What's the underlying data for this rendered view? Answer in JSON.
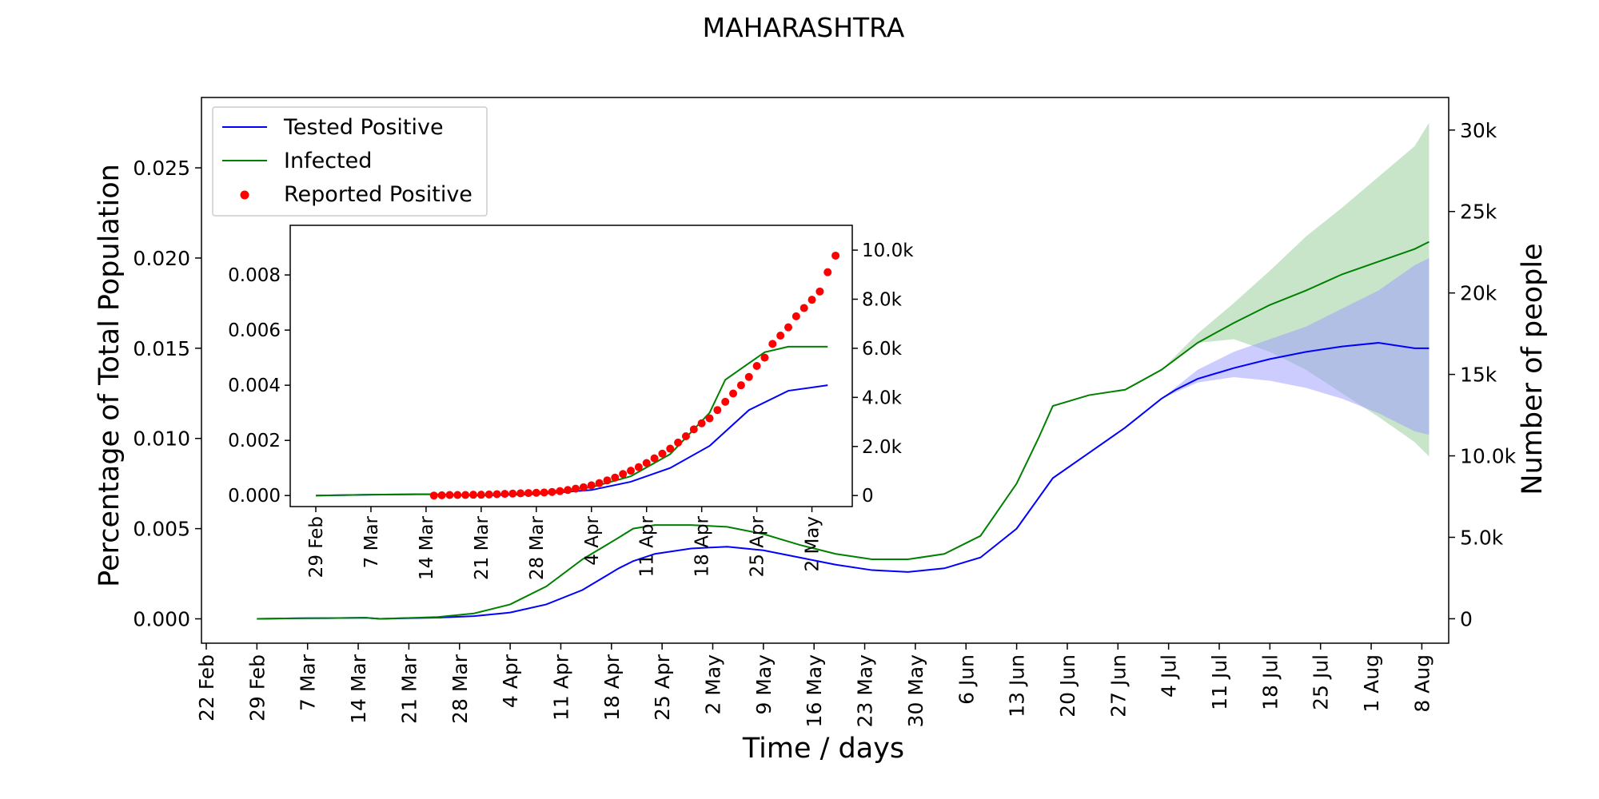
{
  "chart_data": [
    {
      "type": "line",
      "title": "MAHARASHTRA",
      "xlabel": "Time / days",
      "ylabel": "Percentage of Total Population",
      "y2label": "Number of people",
      "x_ticks": [
        "22 Feb",
        "29 Feb",
        "7 Mar",
        "14 Mar",
        "21 Mar",
        "28 Mar",
        "4 Apr",
        "11 Apr",
        "18 Apr",
        "25 Apr",
        "2 May",
        "9 May",
        "16 May",
        "23 May",
        "30 May",
        "6 Jun",
        "13 Jun",
        "20 Jun",
        "27 Jun",
        "4 Jul",
        "11 Jul",
        "18 Jul",
        "25 Jul",
        "1 Aug",
        "8 Aug"
      ],
      "y_ticks": [
        "0.000",
        "0.005",
        "0.010",
        "0.015",
        "0.020",
        "0.025"
      ],
      "y2_ticks": [
        "0",
        "5.0k",
        "10.0k",
        "15k",
        "20k",
        "25k",
        "30k"
      ],
      "ylim": [
        -0.00135,
        0.0289
      ],
      "y2lim": [
        -1500,
        32000
      ],
      "grid": false,
      "legend_position": "top-left",
      "legend": [
        "Tested Positive",
        "Infected",
        "Reported Positive"
      ],
      "colors": {
        "tested": "#0000ff",
        "infected": "#008000",
        "reported": "#ff0000",
        "tested_band": "#9999ff",
        "infected_band": "#8fc88f"
      },
      "series": [
        {
          "name": "Tested Positive",
          "x": [
            0,
            5,
            10,
            15,
            17,
            20,
            25,
            30,
            35,
            40,
            45,
            50,
            52,
            55,
            60,
            65,
            70,
            75,
            80,
            85,
            90,
            95,
            100,
            105,
            110,
            115,
            120,
            125,
            127,
            130,
            135,
            140,
            145,
            150,
            155,
            160,
            162
          ],
          "values": [
            0.0,
            3e-05,
            4e-05,
            6e-05,
            0.0,
            3e-05,
            7e-05,
            0.00015,
            0.00035,
            0.0008,
            0.0016,
            0.0028,
            0.0032,
            0.0036,
            0.0039,
            0.004,
            0.0038,
            0.0034,
            0.003,
            0.0027,
            0.0026,
            0.0028,
            0.0034,
            0.005,
            0.0078,
            0.0092,
            0.0106,
            0.0122,
            0.0127,
            0.0133,
            0.0139,
            0.0144,
            0.0148,
            0.0151,
            0.0153,
            0.015,
            0.015
          ]
        },
        {
          "name": "Infected",
          "x": [
            0,
            5,
            10,
            15,
            17,
            20,
            25,
            30,
            35,
            40,
            45,
            50,
            52,
            55,
            60,
            65,
            70,
            75,
            80,
            85,
            90,
            95,
            100,
            105,
            108,
            110,
            115,
            120,
            125,
            130,
            135,
            140,
            145,
            150,
            155,
            160,
            162
          ],
          "values": [
            0.0,
            3e-05,
            4e-05,
            6e-05,
            0.0,
            4e-05,
            0.0001,
            0.0003,
            0.0008,
            0.0018,
            0.0033,
            0.0045,
            0.005,
            0.0052,
            0.0052,
            0.0051,
            0.0047,
            0.0041,
            0.0036,
            0.0033,
            0.0033,
            0.0036,
            0.0046,
            0.0075,
            0.01,
            0.0118,
            0.0124,
            0.0127,
            0.0138,
            0.0153,
            0.0164,
            0.0174,
            0.0182,
            0.0191,
            0.0198,
            0.0205,
            0.0209
          ]
        }
      ],
      "bands": [
        {
          "name": "Infected range",
          "x": [
            125,
            130,
            135,
            140,
            145,
            150,
            155,
            160,
            162
          ],
          "lower": [
            0.0138,
            0.0153,
            0.0155,
            0.0148,
            0.0138,
            0.0125,
            0.0112,
            0.0098,
            0.009
          ],
          "upper": [
            0.0138,
            0.0158,
            0.0175,
            0.0193,
            0.0212,
            0.0228,
            0.0245,
            0.0262,
            0.0275
          ]
        },
        {
          "name": "Tested Positive range",
          "x": [
            125,
            130,
            135,
            140,
            145,
            150,
            155,
            160,
            162
          ],
          "lower": [
            0.0122,
            0.0131,
            0.0134,
            0.0132,
            0.0128,
            0.0122,
            0.0114,
            0.0104,
            0.0102
          ],
          "upper": [
            0.0122,
            0.0138,
            0.0148,
            0.0155,
            0.0162,
            0.0172,
            0.0182,
            0.0196,
            0.02
          ]
        }
      ]
    },
    {
      "type": "line",
      "title": "",
      "x_ticks": [
        "29 Feb",
        "7 Mar",
        "14 Mar",
        "21 Mar",
        "28 Mar",
        "4 Apr",
        "11 Apr",
        "18 Apr",
        "25 Apr",
        "2 May"
      ],
      "y_ticks": [
        "0.000",
        "0.002",
        "0.004",
        "0.006",
        "0.008"
      ],
      "y2_ticks": [
        "0",
        "2.0k",
        "4.0k",
        "6.0k",
        "8.0k",
        "10.0k"
      ],
      "ylim": [
        -0.0004,
        0.0098
      ],
      "series": [
        {
          "name": "Tested Positive",
          "x": [
            0,
            7,
            14,
            21,
            28,
            35,
            40,
            45,
            50,
            55,
            60,
            65
          ],
          "values": [
            0.0,
            3e-05,
            5e-05,
            0.0,
            5e-05,
            0.0002,
            0.0005,
            0.001,
            0.0018,
            0.0031,
            0.0038,
            0.004
          ]
        },
        {
          "name": "Infected",
          "x": [
            0,
            7,
            14,
            21,
            28,
            35,
            40,
            45,
            50,
            52,
            55,
            57,
            60,
            65
          ],
          "values": [
            0.0,
            3e-05,
            5e-05,
            0.0,
            0.0001,
            0.0003,
            0.0007,
            0.0015,
            0.003,
            0.0042,
            0.0048,
            0.0052,
            0.0054,
            0.0054
          ]
        },
        {
          "name": "Reported Positive",
          "x": [
            15,
            16,
            17,
            18,
            19,
            20,
            21,
            22,
            23,
            24,
            25,
            26,
            27,
            28,
            29,
            30,
            31,
            32,
            33,
            34,
            35,
            36,
            37,
            38,
            39,
            40,
            41,
            42,
            43,
            44,
            45,
            46,
            47,
            48,
            49,
            50,
            51,
            52,
            53,
            54,
            55,
            56,
            57,
            58,
            59,
            60,
            61,
            62,
            63,
            64,
            65,
            66
          ],
          "values": [
            0.0,
            1e-05,
            2e-05,
            2e-05,
            2e-05,
            3e-05,
            3e-05,
            4e-05,
            5e-05,
            6e-05,
            7e-05,
            8e-05,
            9e-05,
            0.0001,
            0.00011,
            0.00013,
            0.00016,
            0.0002,
            0.00025,
            0.0003,
            0.00037,
            0.00045,
            0.00055,
            0.00065,
            0.00078,
            0.0009,
            0.00103,
            0.00118,
            0.00135,
            0.00152,
            0.0017,
            0.00192,
            0.00215,
            0.0024,
            0.00262,
            0.0028,
            0.0031,
            0.0034,
            0.0037,
            0.004,
            0.0043,
            0.0047,
            0.005,
            0.0055,
            0.0058,
            0.0061,
            0.0065,
            0.0068,
            0.0071,
            0.0074,
            0.0081,
            0.0087
          ]
        }
      ]
    }
  ]
}
